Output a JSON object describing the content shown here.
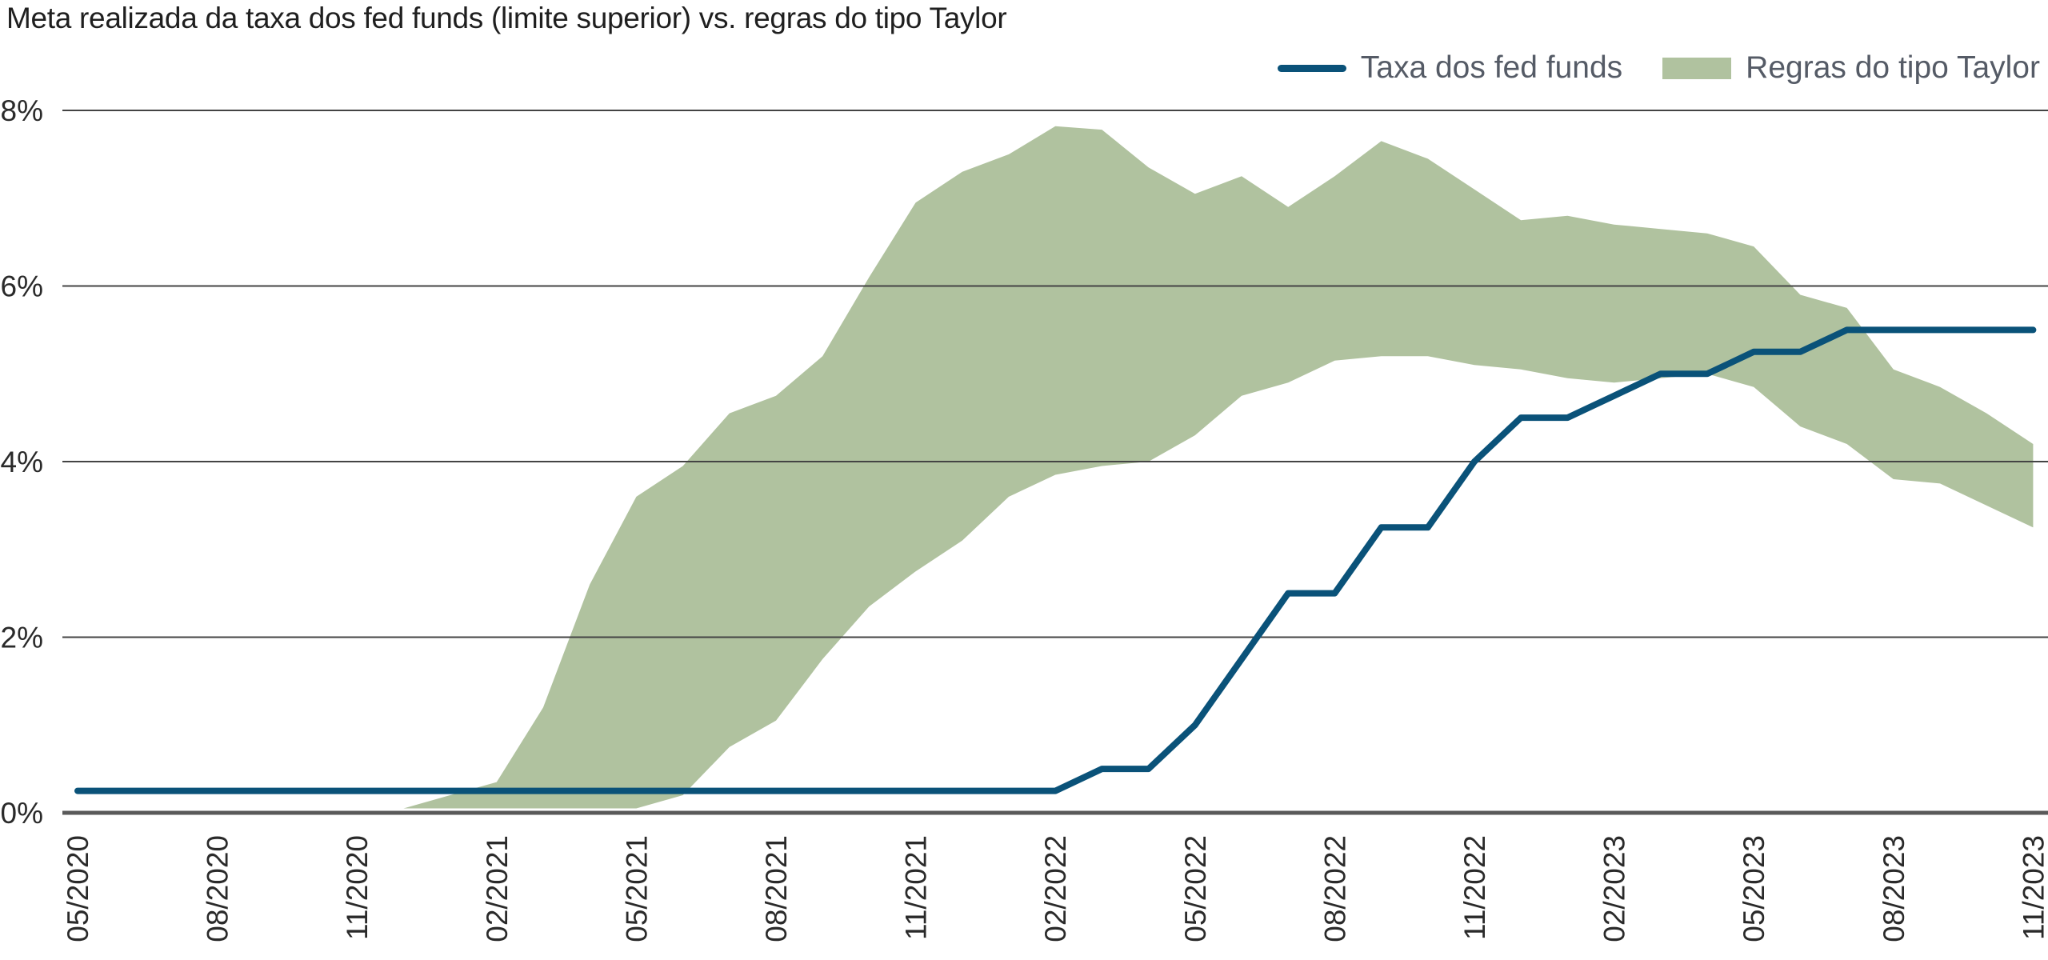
{
  "chart_data": {
    "type": "area",
    "title": "Meta realizada da taxa dos fed funds (limite superior) vs. regras do tipo Taylor",
    "xlabel": "",
    "ylabel": "",
    "ylim": [
      0,
      8
    ],
    "yticks": [
      "0%",
      "2%",
      "4%",
      "6%",
      "8%"
    ],
    "xticks": [
      "05/2020",
      "08/2020",
      "11/2020",
      "02/2021",
      "05/2021",
      "08/2021",
      "11/2021",
      "02/2022",
      "05/2022",
      "08/2022",
      "11/2022",
      "02/2023",
      "05/2023",
      "08/2023",
      "11/2023"
    ],
    "grid": "horizontal",
    "legend_position": "top-right",
    "colors": {
      "line": "#0a5279",
      "band": "#b0c29f",
      "grid": "#444444"
    },
    "series": [
      {
        "name": "Taxa dos fed funds",
        "type": "line",
        "x": [
          "05/2020",
          "02/2022",
          "03/2022",
          "04/2022",
          "05/2022",
          "06/2022",
          "07/2022",
          "08/2022",
          "09/2022",
          "10/2022",
          "11/2022",
          "12/2022",
          "01/2023",
          "02/2023",
          "03/2023",
          "04/2023",
          "05/2023",
          "06/2023",
          "07/2023",
          "11/2023"
        ],
        "values": [
          0.25,
          0.25,
          0.5,
          0.5,
          1.0,
          1.75,
          2.5,
          2.5,
          3.25,
          3.25,
          4.0,
          4.5,
          4.5,
          4.75,
          5.0,
          5.0,
          5.25,
          5.25,
          5.5,
          5.5
        ]
      },
      {
        "name": "Regras do tipo Taylor",
        "type": "band",
        "x": [
          "12/2020",
          "01/2021",
          "02/2021",
          "03/2021",
          "04/2021",
          "05/2021",
          "06/2021",
          "07/2021",
          "08/2021",
          "09/2021",
          "10/2021",
          "11/2021",
          "12/2021",
          "01/2022",
          "02/2022",
          "03/2022",
          "04/2022",
          "05/2022",
          "06/2022",
          "07/2022",
          "08/2022",
          "09/2022",
          "10/2022",
          "11/2022",
          "12/2022",
          "01/2023",
          "02/2023",
          "03/2023",
          "04/2023",
          "05/2023",
          "06/2023",
          "07/2023",
          "08/2023",
          "09/2023",
          "10/2023",
          "11/2023"
        ],
        "upper": [
          0.05,
          0.2,
          0.35,
          1.2,
          2.6,
          3.6,
          3.95,
          4.55,
          4.75,
          5.2,
          6.1,
          6.95,
          7.3,
          7.5,
          7.82,
          7.78,
          7.35,
          7.05,
          7.25,
          6.9,
          7.25,
          7.65,
          7.45,
          7.1,
          6.75,
          6.8,
          6.7,
          6.65,
          6.6,
          6.45,
          5.9,
          5.75,
          5.05,
          4.85,
          4.55,
          4.2
        ],
        "lower": [
          0.05,
          0.05,
          0.05,
          0.05,
          0.05,
          0.05,
          0.2,
          0.75,
          1.05,
          1.75,
          2.35,
          2.75,
          3.1,
          3.6,
          3.85,
          3.95,
          4.0,
          4.3,
          4.75,
          4.9,
          5.15,
          5.2,
          5.2,
          5.1,
          5.05,
          4.95,
          4.9,
          4.95,
          5.0,
          4.85,
          4.4,
          4.2,
          3.8,
          3.75,
          3.5,
          3.25
        ]
      }
    ]
  }
}
